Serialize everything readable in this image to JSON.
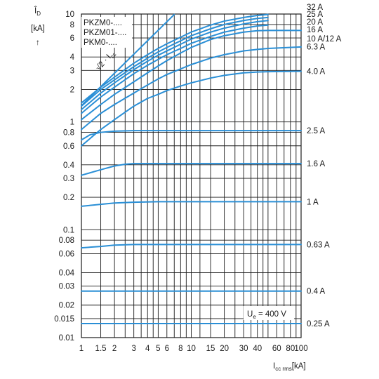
{
  "chart_data": {
    "type": "line",
    "xscale": "log",
    "yscale": "log",
    "xlim": [
      1,
      100
    ],
    "ylim": [
      0.01,
      10
    ],
    "grid": true,
    "ylabel_main": "Î",
    "ylabel_sub": "D",
    "ylabel_unit": "[kA]",
    "ylabel_arrow": "↑",
    "xlabel_main": "I",
    "xlabel_sub": "cc rms",
    "xlabel_unit": "[kA]",
    "legend": [
      "PKZM0-....",
      "PKZM01-....",
      "PKM0-...."
    ],
    "annotation_voltage_main": "U",
    "annotation_voltage_sub": "e",
    "annotation_voltage_rest": " = 400 V",
    "sqrt_label_root": "√2",
    "sqrt_label_rest": " · I",
    "sqrt_label_sub": "cc",
    "xticks": [
      {
        "v": 1,
        "label": "1"
      },
      {
        "v": 1.5,
        "label": "1.5"
      },
      {
        "v": 2,
        "label": "2"
      },
      {
        "v": 3,
        "label": "3"
      },
      {
        "v": 4,
        "label": "4"
      },
      {
        "v": 5,
        "label": "5"
      },
      {
        "v": 6,
        "label": "6"
      },
      {
        "v": 8,
        "label": "8"
      },
      {
        "v": 10,
        "label": "10"
      },
      {
        "v": 15,
        "label": "15"
      },
      {
        "v": 20,
        "label": "20"
      },
      {
        "v": 30,
        "label": "30"
      },
      {
        "v": 40,
        "label": "40"
      },
      {
        "v": 60,
        "label": "60"
      },
      {
        "v": 80,
        "label": "80"
      },
      {
        "v": 100,
        "label": "100"
      }
    ],
    "xgrid": [
      1,
      1.5,
      2,
      2.5,
      3,
      3.5,
      4,
      4.5,
      5,
      6,
      7,
      8,
      9,
      10,
      12,
      15,
      20,
      25,
      30,
      35,
      40,
      45,
      50,
      60,
      70,
      80,
      90,
      100
    ],
    "yticks": [
      {
        "v": 0.01,
        "label": "0.01"
      },
      {
        "v": 0.015,
        "label": "0.015"
      },
      {
        "v": 0.02,
        "label": "0.02"
      },
      {
        "v": 0.03,
        "label": "0.03"
      },
      {
        "v": 0.04,
        "label": "0.04"
      },
      {
        "v": 0.06,
        "label": "0.06"
      },
      {
        "v": 0.08,
        "label": "0.08"
      },
      {
        "v": 0.1,
        "label": "0.1"
      },
      {
        "v": 0.2,
        "label": "0.2"
      },
      {
        "v": 0.3,
        "label": "0.3"
      },
      {
        "v": 0.4,
        "label": "0.4"
      },
      {
        "v": 0.6,
        "label": "0.6"
      },
      {
        "v": 0.8,
        "label": "0.8"
      },
      {
        "v": 1,
        "label": "1"
      },
      {
        "v": 2,
        "label": "2"
      },
      {
        "v": 3,
        "label": "3"
      },
      {
        "v": 4,
        "label": "4"
      },
      {
        "v": 6,
        "label": "6"
      },
      {
        "v": 8,
        "label": "8"
      },
      {
        "v": 10,
        "label": "10"
      }
    ],
    "ygrid": [
      0.01,
      0.015,
      0.02,
      0.03,
      0.04,
      0.06,
      0.08,
      0.1,
      0.2,
      0.3,
      0.4,
      0.6,
      0.8,
      1,
      2,
      3,
      4,
      6,
      8,
      10
    ],
    "series": [
      {
        "name": "32 A",
        "label_y": 9.9,
        "x": [
          1,
          1.5,
          2,
          3,
          4,
          5,
          6,
          8,
          10,
          15,
          20,
          30,
          40,
          50
        ],
        "y": [
          1.5,
          2.1,
          2.6,
          3.5,
          4.2,
          4.8,
          5.3,
          6.1,
          6.8,
          7.9,
          8.6,
          9.3,
          9.7,
          9.9
        ]
      },
      {
        "name": "25 A",
        "label_y": 9.1,
        "x": [
          1,
          1.5,
          2,
          3,
          4,
          5,
          6,
          8,
          10,
          15,
          20,
          30,
          40,
          50
        ],
        "y": [
          1.4,
          2.0,
          2.45,
          3.25,
          3.9,
          4.45,
          4.9,
          5.65,
          6.3,
          7.3,
          8.0,
          8.7,
          9.1,
          9.3
        ]
      },
      {
        "name": "20 A",
        "label_y": 8.5,
        "x": [
          1,
          1.5,
          2,
          3,
          4,
          5,
          6,
          8,
          10,
          15,
          20,
          30,
          40,
          50
        ],
        "y": [
          1.3,
          1.85,
          2.3,
          3.05,
          3.65,
          4.15,
          4.55,
          5.25,
          5.85,
          6.8,
          7.4,
          8.1,
          8.5,
          8.7
        ]
      },
      {
        "name": "16 A",
        "label_y": 7.8,
        "x": [
          1,
          1.5,
          2,
          3,
          4,
          5,
          6,
          8,
          10,
          15,
          20,
          30,
          40,
          50
        ],
        "y": [
          1.2,
          1.7,
          2.1,
          2.8,
          3.35,
          3.8,
          4.2,
          4.8,
          5.35,
          6.2,
          6.8,
          7.4,
          7.75,
          7.9
        ]
      },
      {
        "name": "10 A/12 A",
        "label_y": 7.0,
        "x": [
          1,
          1.5,
          2,
          3,
          4,
          5,
          6,
          8,
          10,
          15,
          20,
          30,
          40,
          50,
          100
        ],
        "y": [
          1.05,
          1.45,
          1.8,
          2.35,
          2.85,
          3.3,
          3.7,
          4.35,
          4.9,
          5.8,
          6.3,
          6.8,
          7.0,
          7.05,
          7.05
        ]
      },
      {
        "name": "6.3 A",
        "label_y": 5.0,
        "x": [
          1,
          1.5,
          2,
          3,
          4,
          5,
          6,
          8,
          10,
          15,
          20,
          30,
          40,
          50,
          100
        ],
        "y": [
          0.85,
          1.2,
          1.45,
          1.85,
          2.2,
          2.5,
          2.75,
          3.1,
          3.4,
          3.9,
          4.2,
          4.55,
          4.7,
          4.8,
          4.95
        ]
      },
      {
        "name": "4.0 A",
        "label_y": 2.95,
        "x": [
          1,
          1.5,
          2,
          3,
          4,
          5,
          6,
          8,
          10,
          15,
          20,
          30,
          40,
          50,
          100
        ],
        "y": [
          0.6,
          0.85,
          1.05,
          1.4,
          1.65,
          1.8,
          1.95,
          2.15,
          2.3,
          2.55,
          2.7,
          2.85,
          2.9,
          2.92,
          2.95
        ]
      },
      {
        "name": "2.5 A",
        "label_y": 0.83,
        "x": [
          1,
          1.2,
          1.5,
          2,
          3,
          4,
          6,
          10,
          100
        ],
        "y": [
          0.68,
          0.76,
          0.8,
          0.82,
          0.83,
          0.83,
          0.83,
          0.83,
          0.83
        ]
      },
      {
        "name": "1.6 A",
        "label_y": 0.41,
        "x": [
          1,
          1.5,
          2,
          2.5,
          3,
          4,
          10,
          100
        ],
        "y": [
          0.32,
          0.36,
          0.39,
          0.405,
          0.41,
          0.41,
          0.41,
          0.41
        ]
      },
      {
        "name": "1 A",
        "label_y": 0.182,
        "x": [
          1,
          1.5,
          2,
          3,
          5,
          100
        ],
        "y": [
          0.165,
          0.172,
          0.177,
          0.18,
          0.182,
          0.182
        ]
      },
      {
        "name": "0.63 A",
        "label_y": 0.073,
        "x": [
          1,
          1.5,
          2,
          3,
          5,
          100
        ],
        "y": [
          0.068,
          0.07,
          0.072,
          0.073,
          0.073,
          0.073
        ]
      },
      {
        "name": "0.4 A",
        "label_y": 0.027,
        "x": [
          1,
          100
        ],
        "y": [
          0.027,
          0.027
        ]
      },
      {
        "name": "0.25 A",
        "label_y": 0.0135,
        "x": [
          1,
          100
        ],
        "y": [
          0.0135,
          0.0135
        ]
      }
    ],
    "sqrt_line": {
      "x": [
        1,
        7
      ],
      "y": [
        1.414,
        9.9
      ]
    }
  }
}
